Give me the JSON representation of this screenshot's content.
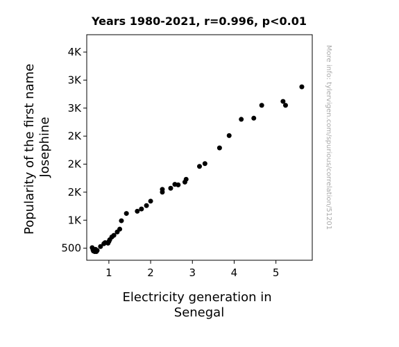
{
  "chart_data": {
    "type": "scatter",
    "title": "Years 1980-2021, r=0.996, p<0.01",
    "xlabel_lines": [
      "Electricity generation in",
      "Senegal"
    ],
    "ylabel_lines": [
      "Popularity of the first name",
      "Josephine"
    ],
    "watermark": "More info: tylervigen.com/spurious/correlation/51201",
    "xlim": [
      0.47,
      5.87
    ],
    "ylim": [
      285,
      4310
    ],
    "x_ticks": [
      {
        "value": 1,
        "label": "1"
      },
      {
        "value": 2,
        "label": "2"
      },
      {
        "value": 3,
        "label": "3"
      },
      {
        "value": 4,
        "label": "4"
      },
      {
        "value": 5,
        "label": "5"
      }
    ],
    "y_ticks": [
      {
        "value": 500,
        "label": "500"
      },
      {
        "value": 1000,
        "label": "1K"
      },
      {
        "value": 1500,
        "label": "2K"
      },
      {
        "value": 2000,
        "label": "2K"
      },
      {
        "value": 2500,
        "label": "2K"
      },
      {
        "value": 3000,
        "label": "3K"
      },
      {
        "value": 3500,
        "label": "3K"
      },
      {
        "value": 4000,
        "label": "4K"
      }
    ],
    "marker_color": "#000000",
    "points": [
      {
        "x": 0.6,
        "y": 510
      },
      {
        "x": 0.62,
        "y": 470
      },
      {
        "x": 0.63,
        "y": 450
      },
      {
        "x": 0.65,
        "y": 460
      },
      {
        "x": 0.66,
        "y": 440
      },
      {
        "x": 0.68,
        "y": 450
      },
      {
        "x": 0.7,
        "y": 440
      },
      {
        "x": 0.72,
        "y": 460
      },
      {
        "x": 0.68,
        "y": 480
      },
      {
        "x": 0.8,
        "y": 530
      },
      {
        "x": 0.88,
        "y": 580
      },
      {
        "x": 0.91,
        "y": 600
      },
      {
        "x": 0.98,
        "y": 590
      },
      {
        "x": 1.0,
        "y": 620
      },
      {
        "x": 1.02,
        "y": 650
      },
      {
        "x": 1.07,
        "y": 700
      },
      {
        "x": 1.12,
        "y": 730
      },
      {
        "x": 1.2,
        "y": 790
      },
      {
        "x": 1.26,
        "y": 840
      },
      {
        "x": 1.3,
        "y": 990
      },
      {
        "x": 1.42,
        "y": 1120
      },
      {
        "x": 1.68,
        "y": 1160
      },
      {
        "x": 1.78,
        "y": 1200
      },
      {
        "x": 1.9,
        "y": 1260
      },
      {
        "x": 2.0,
        "y": 1340
      },
      {
        "x": 2.28,
        "y": 1500
      },
      {
        "x": 2.28,
        "y": 1550
      },
      {
        "x": 2.48,
        "y": 1570
      },
      {
        "x": 2.58,
        "y": 1640
      },
      {
        "x": 2.66,
        "y": 1630
      },
      {
        "x": 2.82,
        "y": 1680
      },
      {
        "x": 2.85,
        "y": 1730
      },
      {
        "x": 3.17,
        "y": 1960
      },
      {
        "x": 3.3,
        "y": 2010
      },
      {
        "x": 3.65,
        "y": 2290
      },
      {
        "x": 3.88,
        "y": 2510
      },
      {
        "x": 4.17,
        "y": 2800
      },
      {
        "x": 4.47,
        "y": 2820
      },
      {
        "x": 4.66,
        "y": 3050
      },
      {
        "x": 5.17,
        "y": 3120
      },
      {
        "x": 5.23,
        "y": 3050
      },
      {
        "x": 5.62,
        "y": 3380
      }
    ]
  }
}
